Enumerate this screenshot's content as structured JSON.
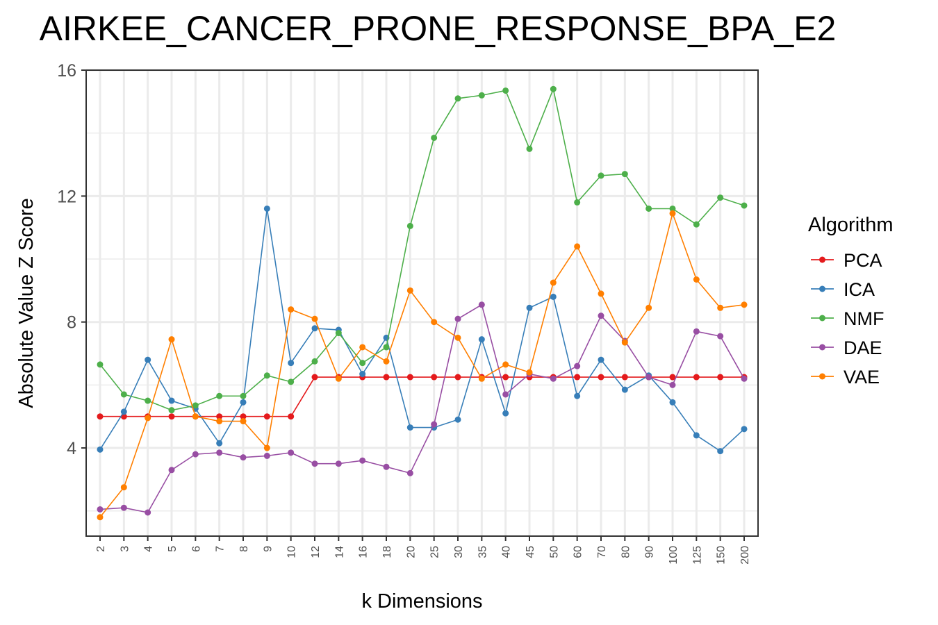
{
  "chart_data": {
    "type": "line",
    "title": "AIRKEE_CANCER_PRONE_RESPONSE_BPA_E2",
    "xlabel": "k Dimensions",
    "ylabel": "Absolute Value Z Score",
    "ylim": [
      1.2,
      16.0
    ],
    "yticks": [
      "4",
      "8",
      "12",
      "16"
    ],
    "grid": true,
    "legend_title": "Algorithm",
    "legend_position": "right",
    "categories": [
      "2",
      "3",
      "4",
      "5",
      "6",
      "7",
      "8",
      "9",
      "10",
      "12",
      "14",
      "16",
      "18",
      "20",
      "25",
      "30",
      "35",
      "40",
      "45",
      "50",
      "60",
      "70",
      "80",
      "90",
      "100",
      "125",
      "150",
      "200"
    ],
    "series": [
      {
        "name": "PCA",
        "color": "#e41a1c",
        "values": [
          5.0,
          5.0,
          5.0,
          5.0,
          5.0,
          5.0,
          5.0,
          5.0,
          5.0,
          6.25,
          6.25,
          6.25,
          6.25,
          6.25,
          6.25,
          6.25,
          6.25,
          6.25,
          6.25,
          6.25,
          6.25,
          6.25,
          6.25,
          6.25,
          6.25,
          6.25,
          6.25,
          6.25
        ]
      },
      {
        "name": "ICA",
        "color": "#377eb8",
        "values": [
          3.95,
          5.15,
          6.8,
          5.5,
          5.25,
          4.15,
          5.45,
          11.6,
          6.7,
          7.8,
          7.75,
          6.35,
          7.5,
          4.65,
          4.65,
          4.9,
          7.45,
          5.1,
          8.45,
          8.8,
          5.65,
          6.8,
          5.85,
          6.3,
          5.45,
          4.4,
          3.9,
          4.6
        ]
      },
      {
        "name": "NMF",
        "color": "#4daf4a",
        "values": [
          6.65,
          5.7,
          5.5,
          5.2,
          5.35,
          5.65,
          5.65,
          6.3,
          6.1,
          6.75,
          7.65,
          6.7,
          7.2,
          11.05,
          13.85,
          15.1,
          15.2,
          15.35,
          13.5,
          15.4,
          11.8,
          12.65,
          12.7,
          11.6,
          11.6,
          11.1,
          11.95,
          11.7
        ]
      },
      {
        "name": "DAE",
        "color": "#984ea3",
        "values": [
          2.05,
          2.1,
          1.95,
          3.3,
          3.8,
          3.85,
          3.7,
          3.75,
          3.85,
          3.5,
          3.5,
          3.6,
          3.4,
          3.2,
          4.75,
          8.1,
          8.55,
          5.7,
          6.35,
          6.2,
          6.6,
          8.2,
          7.4,
          6.25,
          6.0,
          7.7,
          7.55,
          6.2
        ]
      },
      {
        "name": "VAE",
        "color": "#ff7f00",
        "values": [
          1.8,
          2.75,
          4.95,
          7.45,
          5.0,
          4.85,
          4.85,
          4.0,
          8.4,
          8.1,
          6.2,
          7.2,
          6.75,
          9.0,
          8.0,
          7.5,
          6.2,
          6.65,
          6.4,
          9.25,
          10.4,
          8.9,
          7.35,
          8.45,
          11.45,
          9.35,
          8.45,
          8.55
        ]
      }
    ]
  }
}
